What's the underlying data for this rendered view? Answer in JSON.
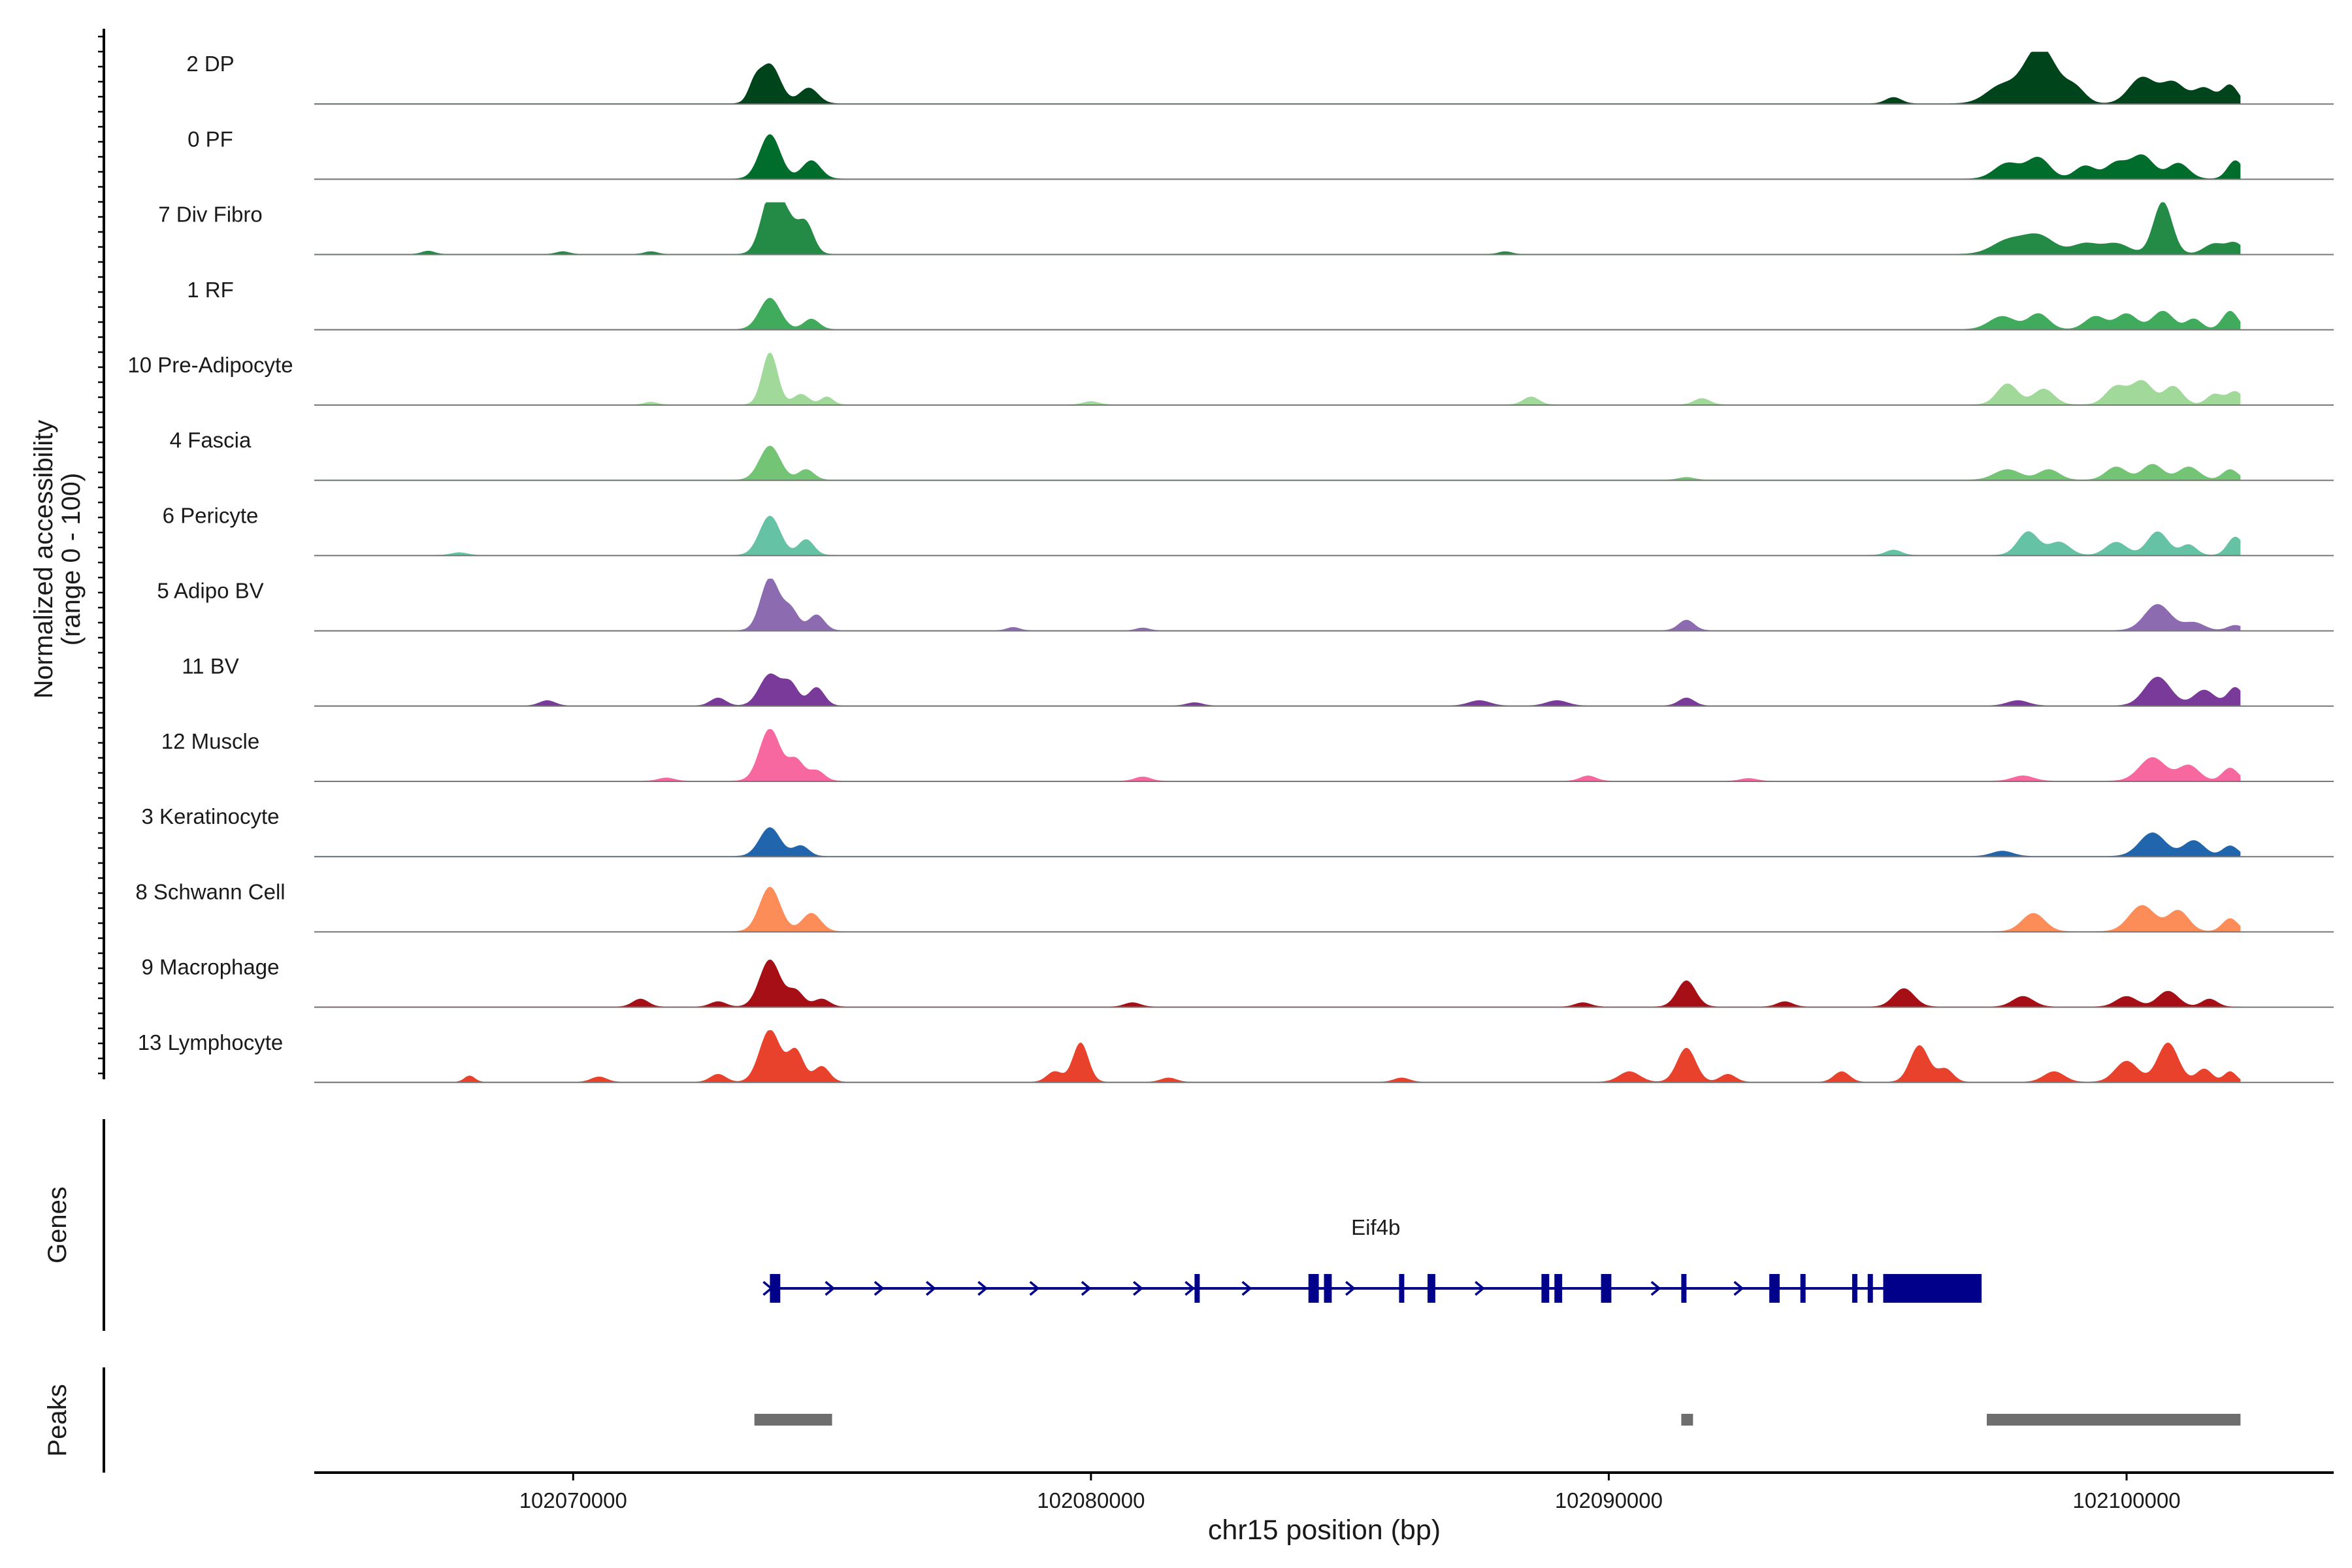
{
  "chart_data": {
    "type": "area",
    "title": "",
    "xlabel": "chr15 position (bp)",
    "ylabel_line1": "Normalized accessibility",
    "ylabel_line2": "(range 0 - 100)",
    "y_range": [
      0,
      100
    ],
    "xlim": [
      102065000,
      102104000
    ],
    "x_ticks": [
      102070000,
      102080000,
      102090000,
      102100000
    ],
    "x_tick_labels": [
      "102070000",
      "102080000",
      "102090000",
      "102100000"
    ],
    "data_extent": [
      102065000,
      102102200
    ],
    "tracks": [
      {
        "label": "2 DP",
        "color": "#00441b",
        "peaks": [
          [
            102073800,
            0.75,
            200
          ],
          [
            102074550,
            0.3,
            180
          ],
          [
            102073500,
            0.3,
            120
          ],
          [
            102097600,
            0.35,
            300
          ],
          [
            102098200,
            0.7,
            250
          ],
          [
            102098500,
            0.6,
            250
          ],
          [
            102099000,
            0.3,
            200
          ],
          [
            102100300,
            0.5,
            250
          ],
          [
            102100900,
            0.4,
            220
          ],
          [
            102101500,
            0.3,
            200
          ],
          [
            102102000,
            0.35,
            150
          ],
          [
            102095500,
            0.12,
            150
          ]
        ]
      },
      {
        "label": "0 PF",
        "color": "#006d2c",
        "peaks": [
          [
            102073800,
            0.85,
            200
          ],
          [
            102074600,
            0.35,
            180
          ],
          [
            102097700,
            0.3,
            250
          ],
          [
            102098300,
            0.4,
            220
          ],
          [
            102099200,
            0.25,
            200
          ],
          [
            102099800,
            0.3,
            200
          ],
          [
            102100300,
            0.45,
            220
          ],
          [
            102101000,
            0.3,
            200
          ],
          [
            102102100,
            0.35,
            150
          ]
        ]
      },
      {
        "label": "7 Div Fibro",
        "color": "#238b45",
        "peaks": [
          [
            102073800,
            1.0,
            180
          ],
          [
            102074100,
            0.7,
            200
          ],
          [
            102074500,
            0.55,
            150
          ],
          [
            102097700,
            0.25,
            300
          ],
          [
            102098300,
            0.35,
            300
          ],
          [
            102099200,
            0.2,
            250
          ],
          [
            102099800,
            0.2,
            250
          ],
          [
            102100700,
            1.0,
            180
          ],
          [
            102101700,
            0.2,
            200
          ],
          [
            102102100,
            0.2,
            150
          ],
          [
            102067200,
            0.06,
            120
          ],
          [
            102069800,
            0.05,
            120
          ],
          [
            102071500,
            0.05,
            120
          ],
          [
            102088000,
            0.05,
            120
          ]
        ]
      },
      {
        "label": "1 RF",
        "color": "#41ab5d",
        "peaks": [
          [
            102073800,
            0.6,
            200
          ],
          [
            102074600,
            0.2,
            150
          ],
          [
            102097600,
            0.25,
            250
          ],
          [
            102098300,
            0.3,
            200
          ],
          [
            102099400,
            0.25,
            200
          ],
          [
            102100000,
            0.3,
            200
          ],
          [
            102100700,
            0.35,
            200
          ],
          [
            102101300,
            0.2,
            150
          ],
          [
            102102000,
            0.35,
            150
          ]
        ]
      },
      {
        "label": "10 Pre-Adipocyte",
        "color": "#a1d99b",
        "peaks": [
          [
            102073800,
            1.0,
            150
          ],
          [
            102074400,
            0.2,
            150
          ],
          [
            102074900,
            0.15,
            120
          ],
          [
            102097700,
            0.4,
            200
          ],
          [
            102098400,
            0.3,
            200
          ],
          [
            102099800,
            0.35,
            200
          ],
          [
            102100300,
            0.45,
            200
          ],
          [
            102100900,
            0.35,
            180
          ],
          [
            102101700,
            0.2,
            150
          ],
          [
            102102100,
            0.25,
            150
          ],
          [
            102088500,
            0.15,
            150
          ],
          [
            102091800,
            0.12,
            150
          ],
          [
            102071500,
            0.05,
            120
          ],
          [
            102080000,
            0.06,
            150
          ]
        ]
      },
      {
        "label": "4 Fascia",
        "color": "#74c476",
        "peaks": [
          [
            102073800,
            0.65,
            200
          ],
          [
            102074500,
            0.2,
            150
          ],
          [
            102097700,
            0.2,
            250
          ],
          [
            102098500,
            0.2,
            200
          ],
          [
            102099800,
            0.25,
            200
          ],
          [
            102100500,
            0.3,
            200
          ],
          [
            102101200,
            0.25,
            200
          ],
          [
            102102000,
            0.2,
            150
          ],
          [
            102091500,
            0.05,
            150
          ]
        ]
      },
      {
        "label": "6 Pericyte",
        "color": "#66c2a4",
        "peaks": [
          [
            102073800,
            0.75,
            200
          ],
          [
            102074500,
            0.3,
            150
          ],
          [
            102095500,
            0.1,
            150
          ],
          [
            102098100,
            0.45,
            200
          ],
          [
            102098700,
            0.25,
            200
          ],
          [
            102099800,
            0.25,
            200
          ],
          [
            102100600,
            0.45,
            200
          ],
          [
            102101200,
            0.2,
            150
          ],
          [
            102102100,
            0.35,
            150
          ],
          [
            102067800,
            0.05,
            150
          ]
        ]
      },
      {
        "label": "5 Adipo BV",
        "color": "#8c6bb1",
        "peaks": [
          [
            102073800,
            1.0,
            180
          ],
          [
            102074200,
            0.4,
            150
          ],
          [
            102074700,
            0.3,
            150
          ],
          [
            102091500,
            0.2,
            150
          ],
          [
            102100600,
            0.5,
            250
          ],
          [
            102101300,
            0.15,
            200
          ],
          [
            102102100,
            0.1,
            150
          ],
          [
            102078500,
            0.06,
            120
          ],
          [
            102081000,
            0.05,
            120
          ]
        ]
      },
      {
        "label": "11 BV",
        "color": "#7a3a9a",
        "peaks": [
          [
            102073800,
            0.6,
            200
          ],
          [
            102074200,
            0.4,
            150
          ],
          [
            102074700,
            0.35,
            150
          ],
          [
            102069500,
            0.1,
            150
          ],
          [
            102072800,
            0.15,
            150
          ],
          [
            102089000,
            0.1,
            200
          ],
          [
            102091500,
            0.15,
            150
          ],
          [
            102097900,
            0.1,
            200
          ],
          [
            102100600,
            0.55,
            250
          ],
          [
            102101500,
            0.3,
            200
          ],
          [
            102102100,
            0.35,
            150
          ],
          [
            102082000,
            0.06,
            150
          ],
          [
            102087500,
            0.1,
            200
          ]
        ]
      },
      {
        "label": "12 Muscle",
        "color": "#f768a1",
        "peaks": [
          [
            102073800,
            1.0,
            200
          ],
          [
            102074300,
            0.4,
            150
          ],
          [
            102074700,
            0.2,
            150
          ],
          [
            102071800,
            0.06,
            150
          ],
          [
            102081000,
            0.08,
            150
          ],
          [
            102089600,
            0.1,
            150
          ],
          [
            102098000,
            0.1,
            200
          ],
          [
            102100500,
            0.45,
            250
          ],
          [
            102101200,
            0.3,
            200
          ],
          [
            102102000,
            0.25,
            150
          ],
          [
            102092700,
            0.05,
            150
          ]
        ]
      },
      {
        "label": "3 Keratinocyte",
        "color": "#2166ac",
        "peaks": [
          [
            102073800,
            0.55,
            200
          ],
          [
            102074400,
            0.2,
            150
          ],
          [
            102097600,
            0.1,
            200
          ],
          [
            102100500,
            0.45,
            250
          ],
          [
            102101300,
            0.3,
            200
          ],
          [
            102102000,
            0.2,
            150
          ]
        ]
      },
      {
        "label": "8 Schwann Cell",
        "color": "#fc8d59",
        "peaks": [
          [
            102073800,
            0.85,
            200
          ],
          [
            102074600,
            0.35,
            180
          ],
          [
            102098200,
            0.35,
            220
          ],
          [
            102100300,
            0.5,
            250
          ],
          [
            102101000,
            0.4,
            200
          ],
          [
            102102000,
            0.25,
            150
          ]
        ]
      },
      {
        "label": "9 Macrophage",
        "color": "#a50f15",
        "peaks": [
          [
            102073800,
            0.9,
            200
          ],
          [
            102074300,
            0.3,
            150
          ],
          [
            102074800,
            0.15,
            150
          ],
          [
            102071300,
            0.15,
            150
          ],
          [
            102072800,
            0.1,
            150
          ],
          [
            102091500,
            0.5,
            180
          ],
          [
            102095700,
            0.35,
            200
          ],
          [
            102098000,
            0.2,
            200
          ],
          [
            102100000,
            0.2,
            200
          ],
          [
            102100800,
            0.3,
            200
          ],
          [
            102101600,
            0.15,
            150
          ],
          [
            102093400,
            0.1,
            150
          ],
          [
            102089500,
            0.08,
            150
          ],
          [
            102080800,
            0.08,
            150
          ]
        ]
      },
      {
        "label": "13 Lymphocyte",
        "color": "#e8412c",
        "peaks": [
          [
            102073800,
            1.0,
            200
          ],
          [
            102074300,
            0.6,
            150
          ],
          [
            102074800,
            0.3,
            150
          ],
          [
            102068000,
            0.12,
            100
          ],
          [
            102070500,
            0.1,
            150
          ],
          [
            102072800,
            0.15,
            150
          ],
          [
            102079800,
            0.75,
            150
          ],
          [
            102079300,
            0.2,
            150
          ],
          [
            102090400,
            0.2,
            200
          ],
          [
            102091500,
            0.65,
            180
          ],
          [
            102092300,
            0.15,
            150
          ],
          [
            102094500,
            0.2,
            150
          ],
          [
            102096000,
            0.7,
            180
          ],
          [
            102096500,
            0.25,
            150
          ],
          [
            102098600,
            0.2,
            200
          ],
          [
            102100000,
            0.4,
            220
          ],
          [
            102100800,
            0.75,
            200
          ],
          [
            102101500,
            0.25,
            150
          ],
          [
            102102000,
            0.2,
            120
          ],
          [
            102086000,
            0.08,
            150
          ],
          [
            102081500,
            0.08,
            150
          ]
        ]
      }
    ],
    "genes_label": "Genes",
    "gene": {
      "name": "Eif4b",
      "color": "#00008b",
      "start": 102073800,
      "end": 102097200,
      "exons": [
        [
          102073800,
          102074000
        ],
        [
          102082000,
          102082100
        ],
        [
          102084200,
          102084400
        ],
        [
          102084500,
          102084650
        ],
        [
          102085950,
          102086000
        ],
        [
          102086500,
          102086650
        ],
        [
          102088700,
          102088850
        ],
        [
          102088950,
          102089100
        ],
        [
          102089850,
          102090050
        ],
        [
          102091400,
          102091500
        ],
        [
          102093100,
          102093300
        ],
        [
          102093700,
          102093750
        ],
        [
          102094700,
          102094800
        ],
        [
          102095000,
          102095100
        ],
        [
          102095300,
          102097200
        ]
      ],
      "arrows": [
        102073750,
        102074950,
        102075900,
        102076900,
        102077900,
        102078900,
        102079900,
        102080900,
        102081900,
        102083000,
        102085000,
        102087500,
        102090900,
        102092500
      ]
    },
    "peaks_label": "Peaks",
    "peak_regions": [
      [
        102073500,
        102075000
      ],
      [
        102091400,
        102091600
      ],
      [
        102097300,
        102102200
      ]
    ],
    "peak_color": "#6e6e6e"
  }
}
